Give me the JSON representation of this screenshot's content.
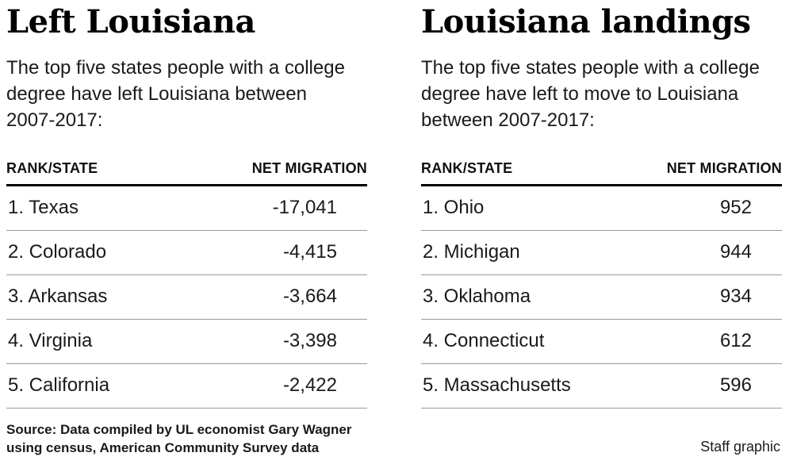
{
  "colors": {
    "background": "#ffffff",
    "title_text": "#000000",
    "body_text": "#1a1a1a",
    "heavy_rule": "#000000",
    "light_rule": "#9a9a9a"
  },
  "panels": [
    {
      "title": "Left Louisiana",
      "subtitle": "The top five states people with a college degree have left Louisiana between 2007-2017:",
      "columns": [
        "RANK/STATE",
        "NET MIGRATION"
      ],
      "rows": [
        {
          "state": "1. Texas",
          "value": "-17,041"
        },
        {
          "state": "2. Colorado",
          "value": "-4,415"
        },
        {
          "state": "3. Arkansas",
          "value": "-3,664"
        },
        {
          "state": "4. Virginia",
          "value": "-3,398"
        },
        {
          "state": "5. California",
          "value": "-2,422"
        }
      ]
    },
    {
      "title": "Louisiana landings",
      "subtitle": "The top five states people with a college degree have left to move to Louisiana between 2007-2017:",
      "columns": [
        "RANK/STATE",
        "NET MIGRATION"
      ],
      "rows": [
        {
          "state": "1. Ohio",
          "value": "952"
        },
        {
          "state": "2. Michigan",
          "value": "944"
        },
        {
          "state": "3. Oklahoma",
          "value": "934"
        },
        {
          "state": "4. Connecticut",
          "value": "612"
        },
        {
          "state": "5. Massachusetts",
          "value": "596"
        }
      ]
    }
  ],
  "footer": {
    "source": "Source: Data compiled by UL economist Gary Wagner using census, American Community Survey data",
    "credit": "Staff graphic"
  },
  "chart_data": [
    {
      "type": "table",
      "title": "Left Louisiana",
      "subtitle": "The top five states people with a college degree have left Louisiana between 2007-2017:",
      "columns": [
        "RANK/STATE",
        "NET MIGRATION"
      ],
      "rows": [
        [
          "1. Texas",
          -17041
        ],
        [
          "2. Colorado",
          -4415
        ],
        [
          "3. Arkansas",
          -3664
        ],
        [
          "4. Virginia",
          -3398
        ],
        [
          "5. California",
          -2422
        ]
      ]
    },
    {
      "type": "table",
      "title": "Louisiana landings",
      "subtitle": "The top five states people with a college degree have left to move to Louisiana between 2007-2017:",
      "columns": [
        "RANK/STATE",
        "NET MIGRATION"
      ],
      "rows": [
        [
          "1. Ohio",
          952
        ],
        [
          "2. Michigan",
          944
        ],
        [
          "3. Oklahoma",
          934
        ],
        [
          "4. Connecticut",
          612
        ],
        [
          "5. Massachusetts",
          596
        ]
      ]
    }
  ]
}
